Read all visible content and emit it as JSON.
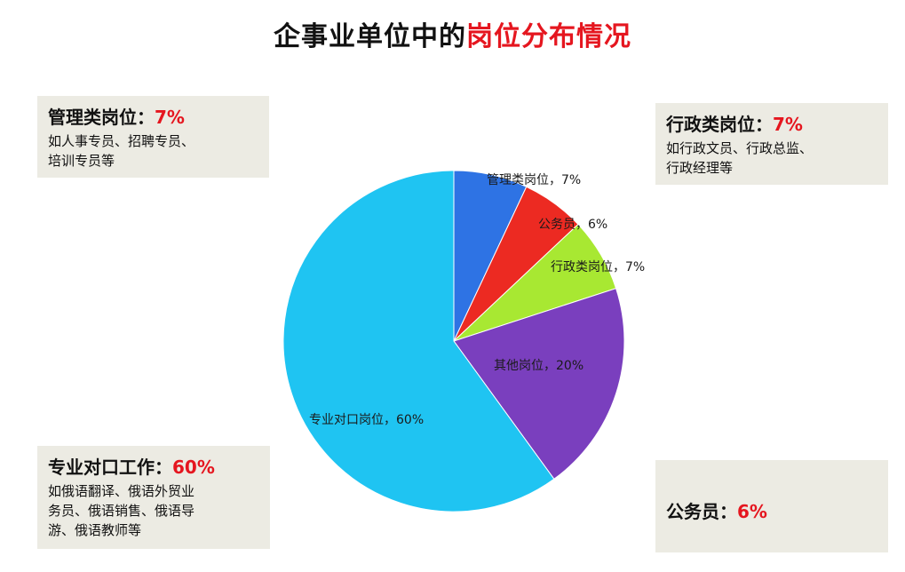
{
  "title": {
    "prefix": "企事业单位中的",
    "highlight": "岗位分布情况"
  },
  "cards": {
    "mgmt": {
      "label": "管理类岗位：",
      "pct": "7%",
      "desc_line1": "如人事专员、招聘专员、",
      "desc_line2": "培训专员等"
    },
    "admin": {
      "label": "行政类岗位：",
      "pct": "7%",
      "desc_line1": "如行政文员、行政总监、",
      "desc_line2": "行政经理等"
    },
    "pro": {
      "label": "专业对口工作：",
      "pct": "60%",
      "desc_line1": "如俄语翻译、俄语外贸业",
      "desc_line2": "务员、俄语销售、俄语导",
      "desc_line3": "游、俄语教师等"
    },
    "civil": {
      "label": "公务员：",
      "pct": "6%"
    }
  },
  "colors": {
    "highlight": "#e5161f",
    "card_bg": "#ecebe3"
  },
  "chart_data": {
    "type": "pie",
    "categories": [
      "管理类岗位",
      "公务员",
      "行政类岗位",
      "其他岗位",
      "专业对口岗位"
    ],
    "values": [
      7,
      6,
      7,
      20,
      60
    ],
    "colors": [
      "#2e73e4",
      "#ec2a22",
      "#a8e832",
      "#7a3fbe",
      "#1fc4f2"
    ],
    "labels": [
      "管理类岗位，7%",
      "公务员，6%",
      "行政类岗位，7%",
      "其他岗位，20%",
      "专业对口岗位，60%"
    ],
    "start": "12 o'clock",
    "direction": "clockwise"
  }
}
